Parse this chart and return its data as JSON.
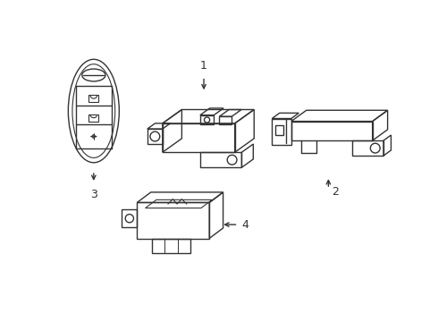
{
  "background_color": "#ffffff",
  "line_color": "#333333",
  "line_width": 1.0,
  "figsize": [
    4.9,
    3.6
  ],
  "dpi": 100
}
